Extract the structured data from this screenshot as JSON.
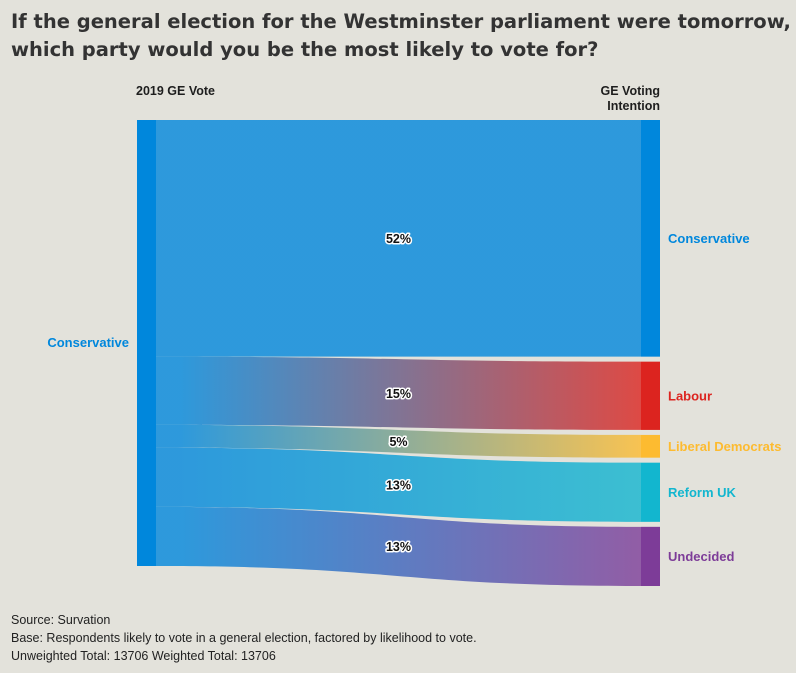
{
  "title": "If the general election for the Westminster parliament were tomorrow, which party would you be the most likely to vote for?",
  "headers": {
    "left": "2019 GE Vote",
    "right_line1": "GE Voting",
    "right_line2": "Intention"
  },
  "footer": {
    "source": "Source: Survation",
    "base": "Base: Respondents likely to vote in a general election, factored by likelihood to vote.",
    "totals": "Unweighted Total: 13706 Weighted Total: 13706"
  },
  "colors": {
    "background": "#e3e2db",
    "Conservative": "#0087dc",
    "Labour": "#dc241f",
    "Liberal Democrats": "#fdbb30",
    "Reform UK": "#12b6cf",
    "Undecided": "#7d3c98"
  },
  "chart_data": {
    "type": "sankey",
    "source_nodes": [
      {
        "name": "Conservative",
        "color": "#0087dc"
      }
    ],
    "target_nodes": [
      {
        "name": "Conservative",
        "color": "#0087dc"
      },
      {
        "name": "Labour",
        "color": "#dc241f"
      },
      {
        "name": "Liberal Democrats",
        "color": "#fdbb30"
      },
      {
        "name": "Reform UK",
        "color": "#12b6cf"
      },
      {
        "name": "Undecided",
        "color": "#7d3c98"
      }
    ],
    "flows": [
      {
        "from": "Conservative",
        "to": "Conservative",
        "value": 52,
        "label": "52%"
      },
      {
        "from": "Conservative",
        "to": "Labour",
        "value": 15,
        "label": "15%"
      },
      {
        "from": "Conservative",
        "to": "Liberal Democrats",
        "value": 5,
        "label": "5%"
      },
      {
        "from": "Conservative",
        "to": "Reform UK",
        "value": 13,
        "label": "13%"
      },
      {
        "from": "Conservative",
        "to": "Undecided",
        "value": 13,
        "label": "13%"
      }
    ]
  }
}
